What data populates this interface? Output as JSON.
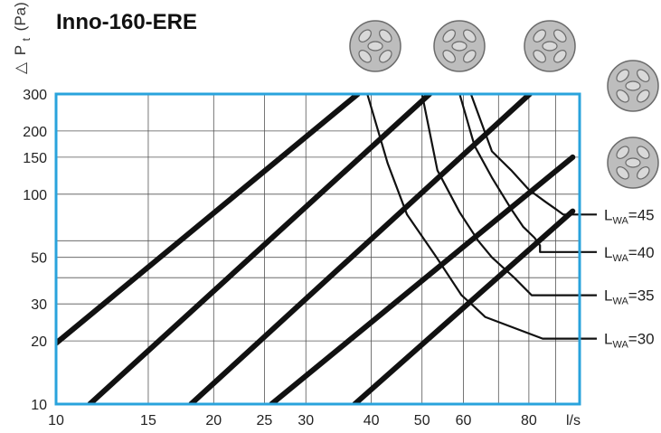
{
  "chart_data": {
    "type": "line",
    "title": "Inno-160-ERE",
    "ylabel": {
      "delta": "△",
      "p": "P",
      "sub": "t",
      "unit": "(Pa)"
    },
    "xlabel": "l/s",
    "x_scale": "log",
    "y_scale": "log",
    "xlim": [
      10,
      100
    ],
    "ylim": [
      10,
      300
    ],
    "grid": true,
    "x_tick_labels": [
      {
        "value": 10,
        "label": "10"
      },
      {
        "value": 15,
        "label": "15"
      },
      {
        "value": 20,
        "label": "20"
      },
      {
        "value": 25,
        "label": "25"
      },
      {
        "value": 30,
        "label": "30"
      },
      {
        "value": 40,
        "label": "40"
      },
      {
        "value": 50,
        "label": "50"
      },
      {
        "value": 60,
        "label": "60"
      },
      {
        "value": 80,
        "label": "80"
      }
    ],
    "x_gridlines": [
      15,
      20,
      25,
      30,
      40,
      50,
      60,
      70,
      80,
      90
    ],
    "y_tick_labels": [
      {
        "value": 10,
        "label": "10"
      },
      {
        "value": 20,
        "label": "20"
      },
      {
        "value": 30,
        "label": "30"
      },
      {
        "value": 50,
        "label": "50"
      },
      {
        "value": 100,
        "label": "100"
      },
      {
        "value": 150,
        "label": "150"
      },
      {
        "value": 200,
        "label": "200"
      },
      {
        "value": 300,
        "label": "300"
      }
    ],
    "y_gridlines": [
      20,
      30,
      40,
      50,
      60,
      100,
      150,
      200
    ],
    "series": [
      {
        "points": [
          [
            10,
            19.5
          ],
          [
            37.7,
            300
          ]
        ]
      },
      {
        "points": [
          [
            11.6,
            10
          ],
          [
            51.7,
            300
          ]
        ]
      },
      {
        "points": [
          [
            18.1,
            10
          ],
          [
            80.3,
            300
          ]
        ]
      },
      {
        "points": [
          [
            25.8,
            10
          ],
          [
            97,
            150
          ]
        ]
      },
      {
        "points": [
          [
            37.2,
            10
          ],
          [
            97,
            83
          ]
        ]
      }
    ],
    "lwa_curves": [
      {
        "label_main": "L",
        "label_sub": "WA",
        "label_value": "=30",
        "level": 20.5,
        "points": [
          [
            39.3,
            300
          ],
          [
            43,
            140
          ],
          [
            46.8,
            80
          ],
          [
            53.3,
            50
          ],
          [
            59.5,
            33
          ],
          [
            63,
            29
          ],
          [
            66,
            26
          ]
        ],
        "tail": [
          [
            85,
            20.5
          ],
          [
            110,
            20.5
          ]
        ]
      },
      {
        "label_main": "L",
        "label_sub": "WA",
        "label_value": "=35",
        "level": 33,
        "points": [
          [
            50,
            300
          ],
          [
            53.5,
            130
          ],
          [
            59,
            82
          ],
          [
            64,
            60
          ],
          [
            68,
            50
          ],
          [
            75,
            40
          ],
          [
            81,
            33
          ]
        ],
        "tail": [
          [
            81,
            33
          ],
          [
            110,
            33
          ]
        ]
      },
      {
        "label_main": "L",
        "label_sub": "WA",
        "label_value": "=40",
        "level": 53,
        "points": [
          [
            59,
            300
          ],
          [
            63,
            170
          ],
          [
            68,
            120
          ],
          [
            74,
            85
          ],
          [
            78,
            70
          ],
          [
            82,
            62
          ],
          [
            84,
            57
          ]
        ],
        "tail": [
          [
            84,
            53
          ],
          [
            110,
            53
          ]
        ]
      },
      {
        "label_main": "L",
        "label_sub": "WA",
        "label_value": "=45",
        "level": 80,
        "points": [
          [
            62,
            300
          ],
          [
            68,
            160
          ],
          [
            74,
            130
          ],
          [
            80,
            105
          ],
          [
            86,
            92
          ],
          [
            90,
            85
          ],
          [
            93,
            80
          ]
        ],
        "tail": [
          [
            93,
            80
          ],
          [
            110,
            80
          ]
        ]
      }
    ],
    "diffuser_icons": [
      "diffuser-icon",
      "diffuser-icon",
      "diffuser-icon",
      "diffuser-icon",
      "diffuser-icon"
    ]
  }
}
